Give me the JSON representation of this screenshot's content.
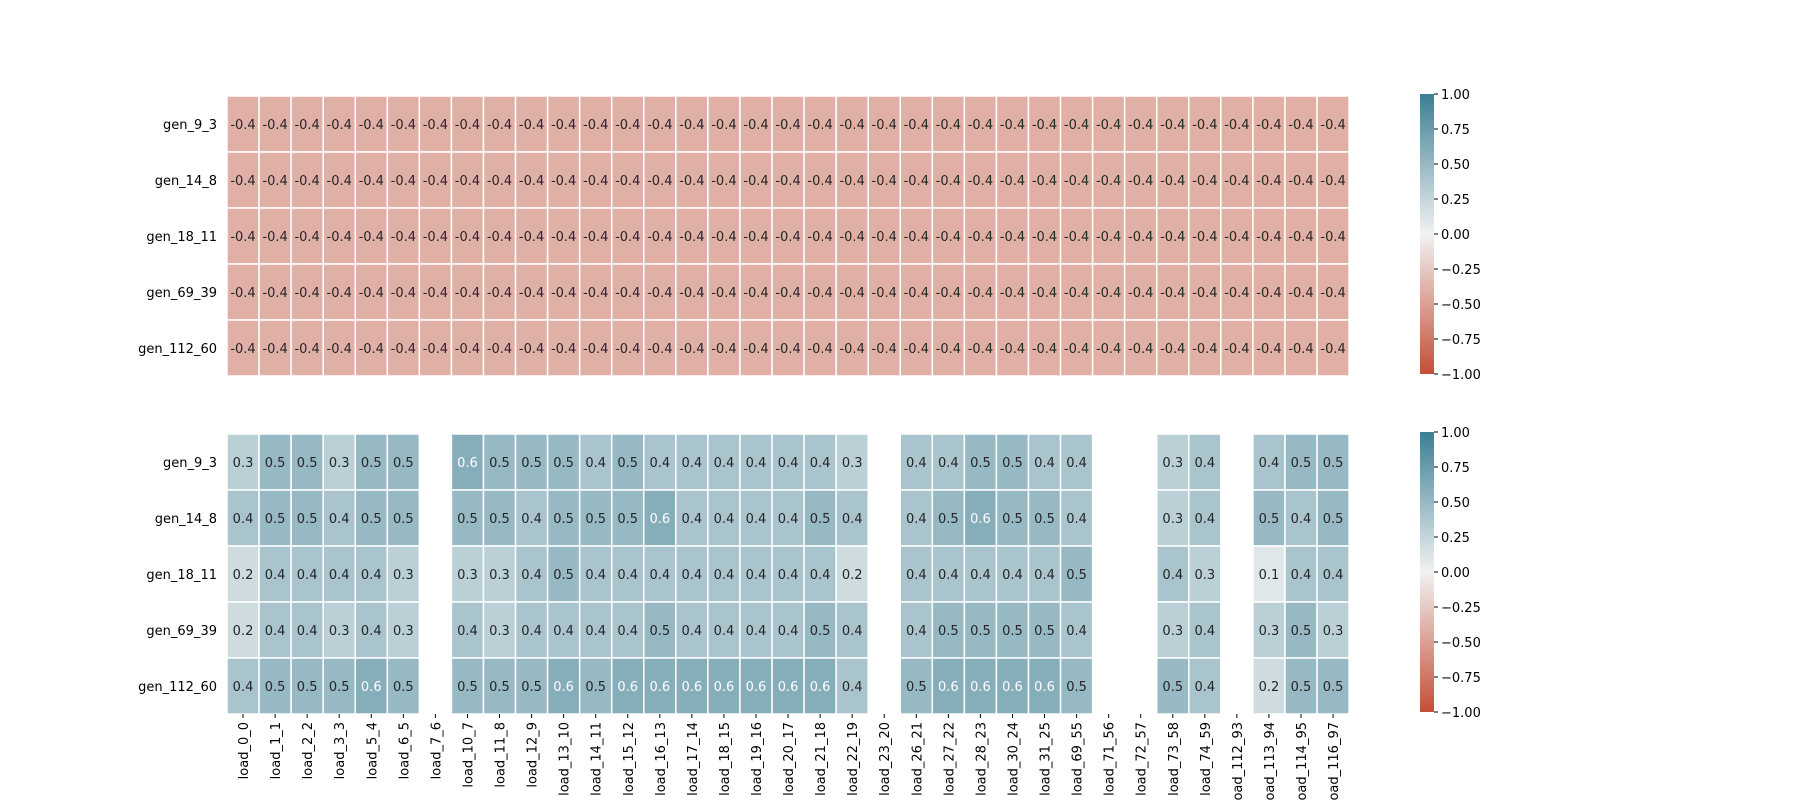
{
  "chart_data": [
    {
      "type": "heatmap",
      "rows": [
        "gen_9_3",
        "gen_14_8",
        "gen_18_11",
        "gen_69_39",
        "gen_112_60"
      ],
      "columns": [
        "load_0_0",
        "load_1_1",
        "load_2_2",
        "load_3_3",
        "load_5_4",
        "load_6_5",
        "load_7_6",
        "load_10_7",
        "load_11_8",
        "load_12_9",
        "load_13_10",
        "load_14_11",
        "load_15_12",
        "load_16_13",
        "load_17_14",
        "load_18_15",
        "load_19_16",
        "load_20_17",
        "load_21_18",
        "load_22_19",
        "load_23_20",
        "load_26_21",
        "load_27_22",
        "load_28_23",
        "load_30_24",
        "load_31_25",
        "load_69_55",
        "load_71_56",
        "load_72_57",
        "load_73_58",
        "load_74_59",
        "load_112_93",
        "load_113_94",
        "load_114_95",
        "load_116_97"
      ],
      "values": [
        [
          -0.4,
          -0.4,
          -0.4,
          -0.4,
          -0.4,
          -0.4,
          -0.4,
          -0.4,
          -0.4,
          -0.4,
          -0.4,
          -0.4,
          -0.4,
          -0.4,
          -0.4,
          -0.4,
          -0.4,
          -0.4,
          -0.4,
          -0.4,
          -0.4,
          -0.4,
          -0.4,
          -0.4,
          -0.4,
          -0.4,
          -0.4,
          -0.4,
          -0.4,
          -0.4,
          -0.4,
          -0.4,
          -0.4,
          -0.4,
          -0.4
        ],
        [
          -0.4,
          -0.4,
          -0.4,
          -0.4,
          -0.4,
          -0.4,
          -0.4,
          -0.4,
          -0.4,
          -0.4,
          -0.4,
          -0.4,
          -0.4,
          -0.4,
          -0.4,
          -0.4,
          -0.4,
          -0.4,
          -0.4,
          -0.4,
          -0.4,
          -0.4,
          -0.4,
          -0.4,
          -0.4,
          -0.4,
          -0.4,
          -0.4,
          -0.4,
          -0.4,
          -0.4,
          -0.4,
          -0.4,
          -0.4,
          -0.4
        ],
        [
          -0.4,
          -0.4,
          -0.4,
          -0.4,
          -0.4,
          -0.4,
          -0.4,
          -0.4,
          -0.4,
          -0.4,
          -0.4,
          -0.4,
          -0.4,
          -0.4,
          -0.4,
          -0.4,
          -0.4,
          -0.4,
          -0.4,
          -0.4,
          -0.4,
          -0.4,
          -0.4,
          -0.4,
          -0.4,
          -0.4,
          -0.4,
          -0.4,
          -0.4,
          -0.4,
          -0.4,
          -0.4,
          -0.4,
          -0.4,
          -0.4
        ],
        [
          -0.4,
          -0.4,
          -0.4,
          -0.4,
          -0.4,
          -0.4,
          -0.4,
          -0.4,
          -0.4,
          -0.4,
          -0.4,
          -0.4,
          -0.4,
          -0.4,
          -0.4,
          -0.4,
          -0.4,
          -0.4,
          -0.4,
          -0.4,
          -0.4,
          -0.4,
          -0.4,
          -0.4,
          -0.4,
          -0.4,
          -0.4,
          -0.4,
          -0.4,
          -0.4,
          -0.4,
          -0.4,
          -0.4,
          -0.4,
          -0.4
        ],
        [
          -0.4,
          -0.4,
          -0.4,
          -0.4,
          -0.4,
          -0.4,
          -0.4,
          -0.4,
          -0.4,
          -0.4,
          -0.4,
          -0.4,
          -0.4,
          -0.4,
          -0.4,
          -0.4,
          -0.4,
          -0.4,
          -0.4,
          -0.4,
          -0.4,
          -0.4,
          -0.4,
          -0.4,
          -0.4,
          -0.4,
          -0.4,
          -0.4,
          -0.4,
          -0.4,
          -0.4,
          -0.4,
          -0.4,
          -0.4,
          -0.4
        ]
      ],
      "colorbar": {
        "min": -1.0,
        "max": 1.0,
        "ticks": [
          "1.00",
          "0.75",
          "0.50",
          "0.25",
          "0.00",
          "−0.25",
          "−0.50",
          "−0.75",
          "−1.00"
        ]
      },
      "show_column_labels": false
    },
    {
      "type": "heatmap",
      "rows": [
        "gen_9_3",
        "gen_14_8",
        "gen_18_11",
        "gen_69_39",
        "gen_112_60"
      ],
      "columns": [
        "load_0_0",
        "load_1_1",
        "load_2_2",
        "load_3_3",
        "load_5_4",
        "load_6_5",
        "load_7_6",
        "load_10_7",
        "load_11_8",
        "load_12_9",
        "load_13_10",
        "load_14_11",
        "load_15_12",
        "load_16_13",
        "load_17_14",
        "load_18_15",
        "load_19_16",
        "load_20_17",
        "load_21_18",
        "load_22_19",
        "load_23_20",
        "load_26_21",
        "load_27_22",
        "load_28_23",
        "load_30_24",
        "load_31_25",
        "load_69_55",
        "load_71_56",
        "load_72_57",
        "load_73_58",
        "load_74_59",
        "load_112_93",
        "load_113_94",
        "load_114_95",
        "load_116_97"
      ],
      "values": [
        [
          0.3,
          0.5,
          0.5,
          0.3,
          0.5,
          0.5,
          null,
          0.6,
          0.5,
          0.5,
          0.5,
          0.4,
          0.5,
          0.4,
          0.4,
          0.4,
          0.4,
          0.4,
          0.4,
          0.3,
          null,
          0.4,
          0.4,
          0.5,
          0.5,
          0.4,
          0.4,
          null,
          null,
          0.3,
          0.4,
          null,
          0.4,
          0.5,
          0.5
        ],
        [
          0.4,
          0.5,
          0.5,
          0.4,
          0.5,
          0.5,
          null,
          0.5,
          0.5,
          0.4,
          0.5,
          0.5,
          0.5,
          0.6,
          0.4,
          0.4,
          0.4,
          0.4,
          0.5,
          0.4,
          null,
          0.4,
          0.5,
          0.6,
          0.5,
          0.5,
          0.4,
          null,
          null,
          0.3,
          0.4,
          null,
          0.5,
          0.4,
          0.5
        ],
        [
          0.2,
          0.4,
          0.4,
          0.4,
          0.4,
          0.3,
          null,
          0.3,
          0.3,
          0.4,
          0.5,
          0.4,
          0.4,
          0.4,
          0.4,
          0.4,
          0.4,
          0.4,
          0.4,
          0.2,
          null,
          0.4,
          0.4,
          0.4,
          0.4,
          0.4,
          0.5,
          null,
          null,
          0.4,
          0.3,
          null,
          0.1,
          0.4,
          0.4
        ],
        [
          0.2,
          0.4,
          0.4,
          0.3,
          0.4,
          0.3,
          null,
          0.4,
          0.3,
          0.4,
          0.4,
          0.4,
          0.4,
          0.5,
          0.4,
          0.4,
          0.4,
          0.4,
          0.5,
          0.4,
          null,
          0.4,
          0.5,
          0.5,
          0.5,
          0.5,
          0.4,
          null,
          null,
          0.3,
          0.4,
          null,
          0.3,
          0.5,
          0.3
        ],
        [
          0.4,
          0.5,
          0.5,
          0.5,
          0.6,
          0.5,
          null,
          0.5,
          0.5,
          0.5,
          0.6,
          0.5,
          0.6,
          0.6,
          0.6,
          0.6,
          0.6,
          0.6,
          0.6,
          0.4,
          null,
          0.5,
          0.6,
          0.6,
          0.6,
          0.6,
          0.5,
          null,
          null,
          0.5,
          0.4,
          null,
          0.2,
          0.5,
          0.5
        ]
      ],
      "colorbar": {
        "min": -1.0,
        "max": 1.0,
        "ticks": [
          "1.00",
          "0.75",
          "0.50",
          "0.25",
          "0.00",
          "−0.25",
          "−0.50",
          "−0.75",
          "−1.00"
        ]
      },
      "show_column_labels": true
    }
  ],
  "colors": {
    "negative": "#c44e37",
    "neutral": "#f2f2f2",
    "positive": "#3c7f94",
    "text_dark": "#262626",
    "text_light": "#ffffff"
  }
}
